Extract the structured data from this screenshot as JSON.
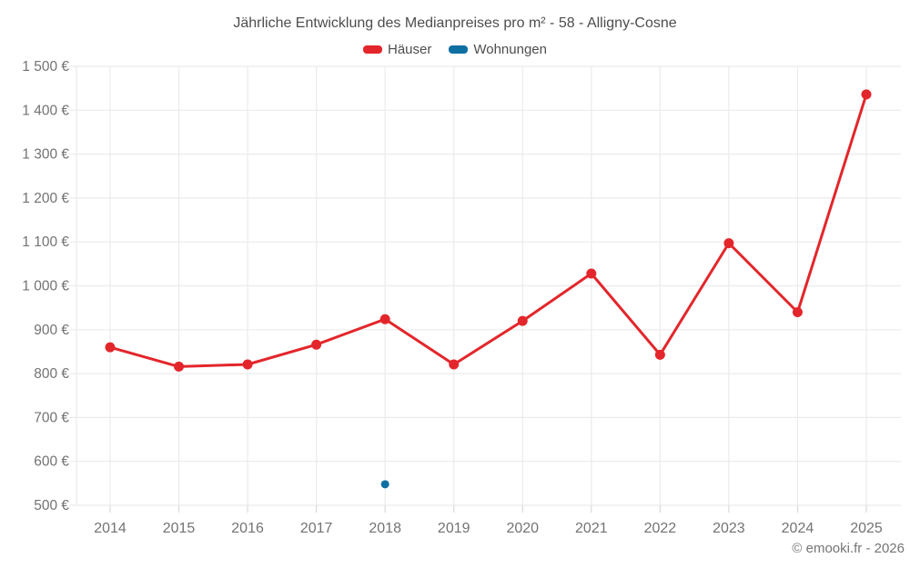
{
  "header": {
    "title": "Jährliche Entwicklung des Medianpreises pro m² - 58 - Alligny-Cosne"
  },
  "chart_data": {
    "type": "line",
    "title": "Jährliche Entwicklung des Medianpreises pro m² - 58 - Alligny-Cosne",
    "categories": [
      "2014",
      "2015",
      "2016",
      "2017",
      "2018",
      "2019",
      "2020",
      "2021",
      "2022",
      "2023",
      "2024",
      "2025"
    ],
    "series": [
      {
        "name": "Häuser",
        "color": "#e3262b",
        "values": [
          860,
          816,
          821,
          866,
          924,
          821,
          920,
          1028,
          843,
          1097,
          940,
          1436
        ]
      },
      {
        "name": "Wohnungen",
        "color": "#0e6fa1",
        "values": [
          null,
          null,
          null,
          null,
          548,
          null,
          null,
          null,
          null,
          null,
          null,
          null
        ]
      }
    ],
    "ylim": [
      500,
      1500
    ],
    "ytick_step": 100,
    "yticks": [
      500,
      600,
      700,
      800,
      900,
      1000,
      1100,
      1200,
      1300,
      1400,
      1500
    ],
    "ytick_labels": [
      "500 €",
      "600 €",
      "700 €",
      "800 €",
      "900 €",
      "1 000 €",
      "1 100 €",
      "1 200 €",
      "1 300 €",
      "1 400 €",
      "1 500 €"
    ],
    "grid": true,
    "legend_position": "top",
    "colors": {
      "grid": "#ebebeb",
      "tick": "#d9d9d9",
      "tick_label": "#737373"
    }
  },
  "footer": {
    "copyright": "© emooki.fr - 2026"
  }
}
